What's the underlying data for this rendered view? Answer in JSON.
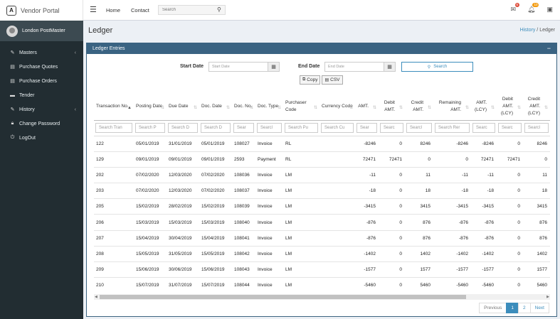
{
  "brand": {
    "logo_letter": "A",
    "name": "Vendor Portal"
  },
  "topnav": {
    "home": "Home",
    "contact": "Contact",
    "search_placeholder": "Search"
  },
  "notifications": {
    "messages_badge": "6",
    "alerts_badge": "10"
  },
  "user": {
    "name": "London PostMaster"
  },
  "sidebar": {
    "items": [
      {
        "label": "Masters",
        "icon": "edit-icon",
        "has_caret": true
      },
      {
        "label": "Purchase Quotes",
        "icon": "file-icon",
        "has_caret": false
      },
      {
        "label": "Purchase Orders",
        "icon": "file-icon",
        "has_caret": false
      },
      {
        "label": "Tender",
        "icon": "drive-icon",
        "has_caret": false
      },
      {
        "label": "History",
        "icon": "edit-icon",
        "has_caret": true
      },
      {
        "label": "Change Password",
        "icon": "lock-icon",
        "has_caret": false
      },
      {
        "label": "LogOut",
        "icon": "power-icon",
        "has_caret": false
      }
    ]
  },
  "page": {
    "title": "Ledger",
    "breadcrumb_parent": "History",
    "breadcrumb_sep": "/",
    "breadcrumb_current": "Ledger"
  },
  "panel": {
    "title": "Ledger Entries",
    "minimize": "−"
  },
  "filters": {
    "start_label": "Start Date",
    "start_placeholder": "Start Date",
    "end_label": "End Date",
    "end_placeholder": "End Date",
    "search_label": "Search"
  },
  "exports": {
    "copy": "Copy",
    "csv": "CSV"
  },
  "table": {
    "headers": [
      "Transaction No.",
      "Posting Date",
      "Due Date",
      "Doc. Date",
      "Doc. No.",
      "Doc. Type",
      "Purchaser Code",
      "Currency Code",
      "AMT.",
      "Debit AMT.",
      "Credit AMT.",
      "Remaining AMT.",
      "AMT. (LCY)",
      "Debit AMT. (LCY)",
      "Credit AMT. (LCY)"
    ],
    "filter_placeholders": [
      "Search Tran",
      "Search P",
      "Search D",
      "Search D",
      "Sear",
      "Searcl",
      "Search Pu",
      "Search Cu",
      "Sear",
      "Searc",
      "Searcl",
      "Search Rer",
      "Searc",
      "Searc",
      "Searcl"
    ],
    "rows": [
      [
        "122",
        "05/01/2019",
        "31/01/2019",
        "05/01/2019",
        "108027",
        "Invoice",
        "RL",
        "",
        "-8246",
        "0",
        "8246",
        "-8246",
        "-8246",
        "0",
        "8246"
      ],
      [
        "129",
        "09/01/2019",
        "09/01/2019",
        "09/01/2019",
        "2593",
        "Payment",
        "RL",
        "",
        "72471",
        "72471",
        "0",
        "0",
        "72471",
        "72471",
        "0"
      ],
      [
        "202",
        "07/02/2020",
        "12/03/2020",
        "07/02/2020",
        "108036",
        "Invoice",
        "LM",
        "",
        "-11",
        "0",
        "11",
        "-11",
        "-11",
        "0",
        "11"
      ],
      [
        "203",
        "07/02/2020",
        "12/03/2020",
        "07/02/2020",
        "108037",
        "Invoice",
        "LM",
        "",
        "-18",
        "0",
        "18",
        "-18",
        "-18",
        "0",
        "18"
      ],
      [
        "205",
        "15/02/2019",
        "28/02/2019",
        "15/02/2019",
        "108039",
        "Invoice",
        "LM",
        "",
        "-3415",
        "0",
        "3415",
        "-3415",
        "-3415",
        "0",
        "3415"
      ],
      [
        "206",
        "15/03/2019",
        "15/03/2019",
        "15/03/2019",
        "108040",
        "Invoice",
        "LM",
        "",
        "-876",
        "0",
        "876",
        "-876",
        "-876",
        "0",
        "876"
      ],
      [
        "207",
        "15/04/2019",
        "30/04/2019",
        "15/04/2019",
        "108041",
        "Invoice",
        "LM",
        "",
        "-876",
        "0",
        "876",
        "-876",
        "-876",
        "0",
        "876"
      ],
      [
        "208",
        "15/05/2019",
        "31/05/2019",
        "15/05/2019",
        "108042",
        "Invoice",
        "LM",
        "",
        "-1402",
        "0",
        "1402",
        "-1402",
        "-1402",
        "0",
        "1402"
      ],
      [
        "209",
        "15/06/2019",
        "30/06/2019",
        "15/06/2019",
        "108043",
        "Invoice",
        "LM",
        "",
        "-1577",
        "0",
        "1577",
        "-1577",
        "-1577",
        "0",
        "1577"
      ],
      [
        "210",
        "15/07/2019",
        "31/07/2019",
        "15/07/2019",
        "108044",
        "Invoice",
        "LM",
        "",
        "-5460",
        "0",
        "5460",
        "-5460",
        "-5460",
        "0",
        "5460"
      ]
    ]
  },
  "pagination": {
    "previous": "Previous",
    "pages": [
      "1",
      "2"
    ],
    "active_page": "1",
    "next": "Next"
  },
  "colors": {
    "sidebar_bg": "#222d32",
    "panel_header": "#3a6382",
    "accent": "#3c8dbc",
    "badge_red": "#dd4b39",
    "badge_yellow": "#f39c12"
  }
}
